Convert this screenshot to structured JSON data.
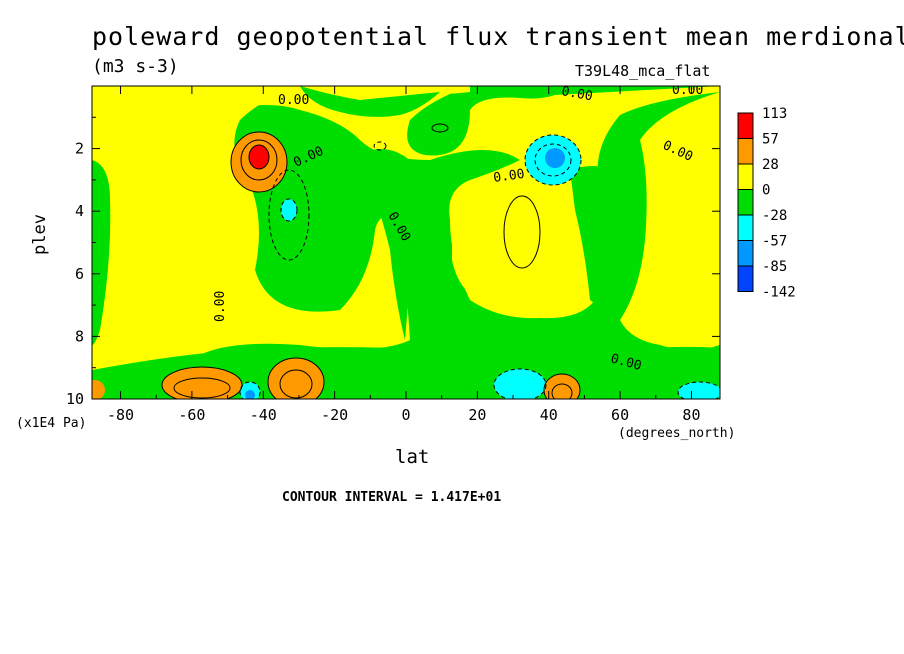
{
  "header": {
    "title": "poleward geopotential flux transient mean merdional",
    "units": "(m3 s-3)",
    "run_id": "T39L48_mca_flat"
  },
  "footer": {
    "contour_interval": "CONTOUR INTERVAL = 1.417E+01"
  },
  "chart_data": {
    "type": "heatmap",
    "title": "poleward geopotential flux transient mean merdional",
    "subtitle": "(m3 s-3)",
    "annotation": "T39L48_mca_flat",
    "xlabel": "lat",
    "xunits": "(degrees_north)",
    "ylabel": "plev",
    "yunits": "(x1E4 Pa)",
    "xlim": [
      -88,
      88
    ],
    "ylim": [
      10,
      0
    ],
    "xticks": [
      -80,
      -60,
      -40,
      -20,
      0,
      20,
      40,
      60,
      80
    ],
    "xtick_labels": [
      "-80",
      "-60",
      "-40",
      "-20",
      "0",
      "20",
      "40",
      "60",
      "80"
    ],
    "yticks": [
      2,
      4,
      6,
      8,
      10
    ],
    "ytick_labels": [
      "2",
      "4",
      "6",
      "8",
      "10"
    ],
    "contour_label": "0.00",
    "contour_interval": 14.17,
    "levels": [
      113,
      57,
      28,
      0,
      -28,
      -57,
      -85,
      -142
    ],
    "colorbar": {
      "labels": [
        "113",
        "57",
        "28",
        "0",
        "-28",
        "-57",
        "-85",
        "-142"
      ],
      "colors": [
        "#ff0000",
        "#ff9900",
        "#ffff00",
        "#00dd00",
        "#00ffff",
        "#0099ff",
        "#0044ff"
      ]
    },
    "features": [
      {
        "type": "max",
        "lat": -41,
        "plev": 2.4,
        "value": 113
      },
      {
        "type": "max",
        "lat": -31,
        "plev": 9.6,
        "value": 57
      },
      {
        "type": "max",
        "lat": -57,
        "plev": 9.6,
        "value": 57
      },
      {
        "type": "max",
        "lat": 44,
        "plev": 9.8,
        "value": 57
      },
      {
        "type": "max",
        "lat": -86,
        "plev": 9.8,
        "value": 57
      },
      {
        "type": "min",
        "lat": 43,
        "plev": 2.4,
        "value": -57
      },
      {
        "type": "min",
        "lat": -36,
        "plev": 4.0,
        "value": -28
      },
      {
        "type": "min",
        "lat": 35,
        "plev": 9.6,
        "value": -28
      },
      {
        "type": "min",
        "lat": 82,
        "plev": 9.7,
        "value": -28
      },
      {
        "type": "min",
        "lat": -45,
        "plev": 9.8,
        "value": -28
      }
    ]
  }
}
